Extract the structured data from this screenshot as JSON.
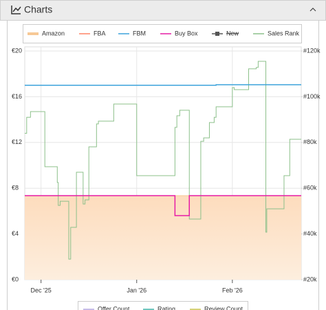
{
  "header": {
    "title": "Charts"
  },
  "chart_data": {
    "type": "line",
    "step": true,
    "grid": true,
    "xlim": [
      -0.17,
      2.72
    ],
    "xticks": [
      {
        "value": 0,
        "label": "Dec '25"
      },
      {
        "value": 1,
        "label": "Jan '26"
      },
      {
        "value": 2,
        "label": "Feb '26"
      }
    ],
    "ylim": [
      0,
      20
    ],
    "yticks": [
      {
        "value": 0,
        "label": "€0"
      },
      {
        "value": 4,
        "label": "€4"
      },
      {
        "value": 8,
        "label": "€8"
      },
      {
        "value": 12,
        "label": "€12"
      },
      {
        "value": 16,
        "label": "€16"
      },
      {
        "value": 20,
        "label": "€20"
      }
    ],
    "y2lim": [
      20000,
      120000
    ],
    "y2ticks": [
      {
        "value": 20000,
        "label": "#20k"
      },
      {
        "value": 40000,
        "label": "#40k"
      },
      {
        "value": 60000,
        "label": "#60k"
      },
      {
        "value": 80000,
        "label": "#80k"
      },
      {
        "value": 100000,
        "label": "#100k"
      },
      {
        "value": 120000,
        "label": "#120k"
      }
    ],
    "series": [
      {
        "name": "Amazon",
        "color": "#f7c996",
        "area": true,
        "x": [
          -0.17,
          2.72
        ],
        "values": [
          7.35,
          7.35
        ]
      },
      {
        "name": "FBA",
        "color": "#ff8466",
        "x": [],
        "values": []
      },
      {
        "name": "FBM",
        "color": "#3ba3db",
        "x": [
          -0.17,
          1.83,
          2.72
        ],
        "values": [
          17.0,
          17.05,
          17.05
        ]
      },
      {
        "name": "Buy Box",
        "color": "#e61ca6",
        "x": [
          -0.17,
          1.4,
          1.55,
          2.72
        ],
        "values": [
          7.35,
          5.6,
          7.35,
          7.35
        ]
      },
      {
        "name": "New",
        "color": "#555555",
        "hidden": true,
        "x": [],
        "values": []
      },
      {
        "name": "Sales Rank",
        "color": "#8cc08a",
        "axis": "y2",
        "x": [
          -0.17,
          -0.15,
          -0.11,
          0.04,
          0.17,
          0.18,
          0.2,
          0.29,
          0.31,
          0.37,
          0.44,
          0.46,
          0.5,
          0.58,
          0.6,
          0.76,
          1.0,
          1.4,
          1.42,
          1.45,
          1.55,
          1.67,
          1.7,
          1.76,
          1.81,
          1.83,
          2.0,
          2.02,
          2.17,
          2.25,
          2.27,
          2.35,
          2.36,
          2.54,
          2.6,
          2.72
        ],
        "values": [
          84000,
          91000,
          93500,
          69400,
          62500,
          52500,
          54300,
          29000,
          42900,
          67000,
          53100,
          54900,
          78100,
          88100,
          89300,
          96800,
          65500,
          86600,
          91700,
          94100,
          46500,
          80500,
          82000,
          88700,
          91000,
          95600,
          104000,
          103100,
          112200,
          112800,
          115500,
          40800,
          51000,
          65500,
          81400,
          81400
        ]
      }
    ],
    "secondary_legend": [
      {
        "name": "Offer Count",
        "color": "#b3a6e0"
      },
      {
        "name": "Rating",
        "color": "#3fb3a8"
      },
      {
        "name": "Review Count",
        "color": "#c8c24a"
      }
    ]
  }
}
